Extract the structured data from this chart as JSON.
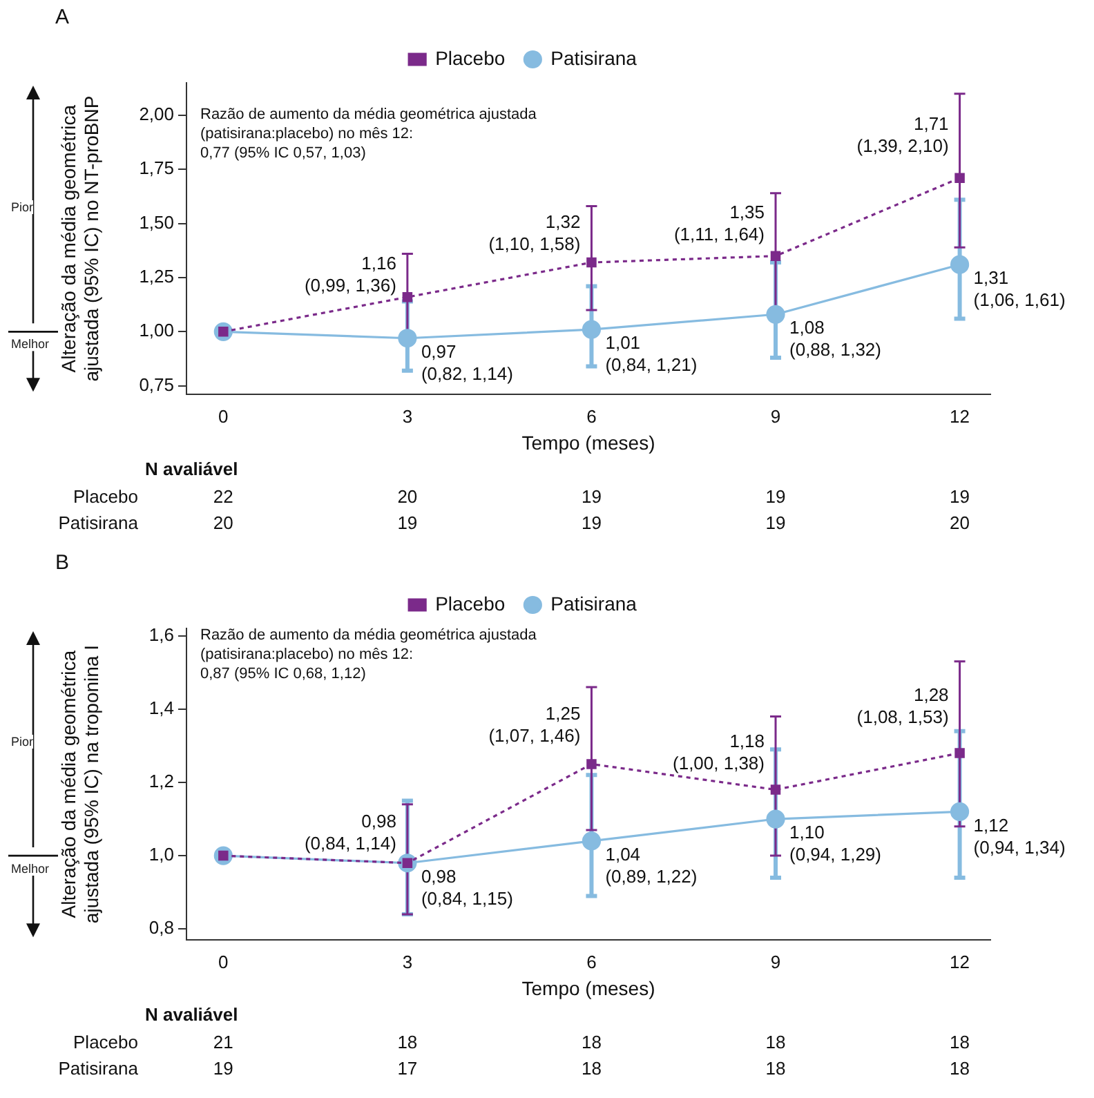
{
  "chart_data": [
    {
      "type": "line",
      "title": "A",
      "xlabel": "Tempo (meses)",
      "ylabel": "Alteração da média geométrica\najustada (95% IC) no NT-proBNP",
      "legend": "top",
      "x": [
        0,
        3,
        6,
        9,
        12
      ],
      "xlim": [
        -0.6,
        12.5
      ],
      "xticks": [
        0,
        3,
        6,
        9,
        12
      ],
      "ylim": [
        0.71,
        2.15
      ],
      "yticks": [
        {
          "value": 0.75,
          "label": "0,75"
        },
        {
          "value": 1.0,
          "label": "1,00"
        },
        {
          "value": 1.25,
          "label": "1,25"
        },
        {
          "value": 1.5,
          "label": "1,50"
        },
        {
          "value": 1.75,
          "label": "1,75"
        },
        {
          "value": 2.0,
          "label": "2,00"
        }
      ],
      "series": [
        {
          "name": "Placebo",
          "color": "#7b2a8a",
          "marker": "square",
          "line_style": "dotted",
          "values": [
            1.0,
            1.16,
            1.32,
            1.35,
            1.71
          ],
          "errors": [
            null,
            [
              0.99,
              1.36
            ],
            [
              1.1,
              1.58
            ],
            [
              1.11,
              1.64
            ],
            [
              1.39,
              2.1
            ]
          ],
          "value_labels": [
            null,
            "1,16\n(0,99, 1,36)",
            "1,32\n(1,10, 1,58)",
            "1,35\n(1,11, 1,64)",
            "1,71\n(1,39, 2,10)"
          ]
        },
        {
          "name": "Patisirana",
          "color": "#86bbe0",
          "marker": "circle",
          "line_style": "solid",
          "values": [
            1.0,
            0.97,
            1.01,
            1.08,
            1.31
          ],
          "errors": [
            null,
            [
              0.82,
              1.14
            ],
            [
              0.84,
              1.21
            ],
            [
              0.88,
              1.32
            ],
            [
              1.06,
              1.61
            ]
          ],
          "value_labels": [
            null,
            "0,97\n(0,82, 1,14)",
            "1,01\n(0,84, 1,21)",
            "1,08\n(0,88, 1,32)",
            "1,31\n(1,06, 1,61)"
          ]
        }
      ],
      "annotations": [
        "Razão de aumento da média geométrica ajustada\n(patisirana:placebo) no mês 12:\n0,77 (95% IC 0,57, 1,03)",
        "Pior",
        "Melhor",
        "N avaliável",
        "Placebo 22 20 19 19 19",
        "Patisirana 20 19 19 19 20"
      ]
    },
    {
      "type": "line",
      "title": "B",
      "xlabel": "Tempo (meses)",
      "ylabel": "Alteração da média geométrica\najustada (95% IC) na troponina I",
      "legend": "top",
      "x": [
        0,
        3,
        6,
        9,
        12
      ],
      "xlim": [
        -0.6,
        12.5
      ],
      "xticks": [
        0,
        3,
        6,
        9,
        12
      ],
      "ylim": [
        0.77,
        1.62
      ],
      "yticks": [
        {
          "value": 0.8,
          "label": "0,8"
        },
        {
          "value": 1.0,
          "label": "1,0"
        },
        {
          "value": 1.2,
          "label": "1,2"
        },
        {
          "value": 1.4,
          "label": "1,4"
        },
        {
          "value": 1.6,
          "label": "1,6"
        }
      ],
      "series": [
        {
          "name": "Placebo",
          "color": "#7b2a8a",
          "marker": "square",
          "line_style": "dotted",
          "values": [
            1.0,
            0.98,
            1.25,
            1.18,
            1.28
          ],
          "errors": [
            null,
            [
              0.84,
              1.14
            ],
            [
              1.07,
              1.46
            ],
            [
              1.0,
              1.38
            ],
            [
              1.08,
              1.53
            ]
          ],
          "value_labels": [
            null,
            "0,98\n(0,84, 1,14)",
            "1,25\n(1,07, 1,46)",
            "1,18\n(1,00, 1,38)",
            "1,28\n(1,08, 1,53)"
          ]
        },
        {
          "name": "Patisirana",
          "color": "#86bbe0",
          "marker": "circle",
          "line_style": "solid",
          "values": [
            1.0,
            0.98,
            1.04,
            1.1,
            1.12
          ],
          "errors": [
            null,
            [
              0.84,
              1.15
            ],
            [
              0.89,
              1.22
            ],
            [
              0.94,
              1.29
            ],
            [
              0.94,
              1.34
            ]
          ],
          "value_labels": [
            null,
            "0,98\n(0,84, 1,15)",
            "1,04\n(0,89, 1,22)",
            "1,10\n(0,94, 1,29)",
            "1,12\n(0,94, 1,34)"
          ]
        }
      ],
      "annotations": [
        "Razão de aumento da média geométrica ajustada\n(patisirana:placebo) no mês 12:\n0,87 (95% IC 0,68, 1,12)",
        "Pior",
        "Melhor",
        "N avaliável",
        "Placebo 21 18 18 18 18",
        "Patisirana 19 17 18 18 18"
      ]
    }
  ]
}
